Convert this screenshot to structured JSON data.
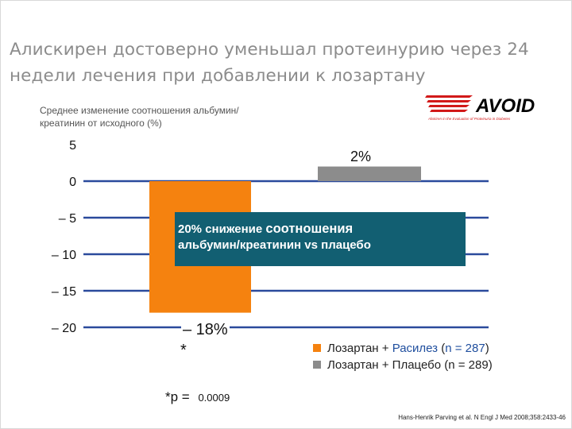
{
  "title": "Алискирен достоверно уменьшал протеинурию через 24 недели лечения при добавлении к лозартану",
  "logo": {
    "text": "AVOID",
    "subtitle": "Aliskiren in the Evaluation of Proteinuria in Diabetes"
  },
  "colors": {
    "bar_1": "#f5820f",
    "bar_2": "#8c8c8c",
    "gridline": "#2a4a9c",
    "annotation_bg": "#125f72",
    "logo_red": "#d21919"
  },
  "annotation": {
    "part1": "20% снижение ",
    "part2": "соотношения",
    "line2": "альбумин/креатинин vs плацебо"
  },
  "chart_data": {
    "type": "bar",
    "ylabel": "Среднее изменение соотношения альбумин/креатинин от исходного (%)",
    "ylim": [
      -20,
      5
    ],
    "yticks": [
      5,
      0,
      -5,
      -10,
      -15,
      -20
    ],
    "ytick_labels": [
      "5",
      "0",
      "– 5",
      "– 10",
      "– 15",
      "– 20"
    ],
    "grid": true,
    "series": [
      {
        "name": "Лозартан + Расилез (n = 287)",
        "value": -18,
        "label": "– 18%",
        "marker": "*"
      },
      {
        "name": "Лозартан + Плацебо (n = 289)",
        "value": 2,
        "label": "2%"
      }
    ]
  },
  "legend": {
    "item1": {
      "prefix": "Лозартан + ",
      "blue": "Расилез",
      "mid": " (",
      "n": "n = 287",
      "suffix": ")"
    },
    "item2": "Лозартан + Плацебо (n = 289)"
  },
  "footnote": {
    "label": "*p = ",
    "value": "0.0009"
  },
  "citation": "Hans-Henrik Parving et al. N Engl J Med 2008;358:2433-46"
}
